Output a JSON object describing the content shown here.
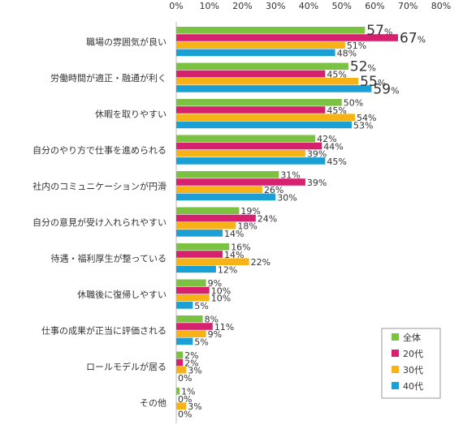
{
  "chart_data": {
    "type": "bar",
    "orientation": "horizontal",
    "title": "",
    "xlabel": "",
    "ylabel": "",
    "xlim": [
      0,
      80
    ],
    "x_ticks": [
      "0%",
      "10%",
      "20%",
      "30%",
      "40%",
      "50%",
      "60%",
      "70%",
      "80%"
    ],
    "grid": false,
    "legend_position": "bottom-right",
    "categories": [
      "職場の雰囲気が良い",
      "労働時間が適正・融通が利く",
      "休暇を取りやすい",
      "自分のやり方で仕事を進められる",
      "社内のコミュニケーションが円滑",
      "自分の意見が受け入れられやすい",
      "待遇・福利厚生が整っている",
      "休職後に復帰しやすい",
      "仕事の成果が正当に評価される",
      "ロールモデルが居る",
      "その他"
    ],
    "series": [
      {
        "name": "全体",
        "color": "#7cc242",
        "values": [
          57,
          52,
          50,
          42,
          31,
          19,
          16,
          9,
          8,
          2,
          1
        ]
      },
      {
        "name": "20代",
        "color": "#d6216f",
        "values": [
          67,
          45,
          45,
          44,
          39,
          24,
          14,
          10,
          11,
          2,
          0
        ]
      },
      {
        "name": "30代",
        "color": "#f7b217",
        "values": [
          51,
          55,
          54,
          39,
          26,
          18,
          22,
          10,
          9,
          3,
          3
        ]
      },
      {
        "name": "40代",
        "color": "#1aa0d4",
        "values": [
          48,
          59,
          53,
          45,
          30,
          14,
          12,
          5,
          5,
          0,
          0
        ]
      }
    ],
    "value_labels": [
      [
        "57%",
        "67%",
        "51%",
        "48%"
      ],
      [
        "52%",
        "45%",
        "55%",
        "59%"
      ],
      [
        "50%",
        "45%",
        "54%",
        "53%"
      ],
      [
        "42%",
        "44%",
        "39%",
        "45%"
      ],
      [
        "31%",
        "39%",
        "26%",
        "30%"
      ],
      [
        "19%",
        "24%",
        "18%",
        "14%"
      ],
      [
        "16%",
        "14%",
        "22%",
        "12%"
      ],
      [
        "9%",
        "10%",
        "10%",
        "5%"
      ],
      [
        "8%",
        "11%",
        "9%",
        "5%"
      ],
      [
        "2%",
        "2%",
        "3%",
        "0%"
      ],
      [
        "1%",
        "0%",
        "3%",
        "0%"
      ]
    ],
    "highlighted_labels": [
      [
        0,
        0
      ],
      [
        0,
        1
      ],
      [
        1,
        0
      ],
      [
        1,
        2
      ],
      [
        1,
        3
      ]
    ]
  }
}
